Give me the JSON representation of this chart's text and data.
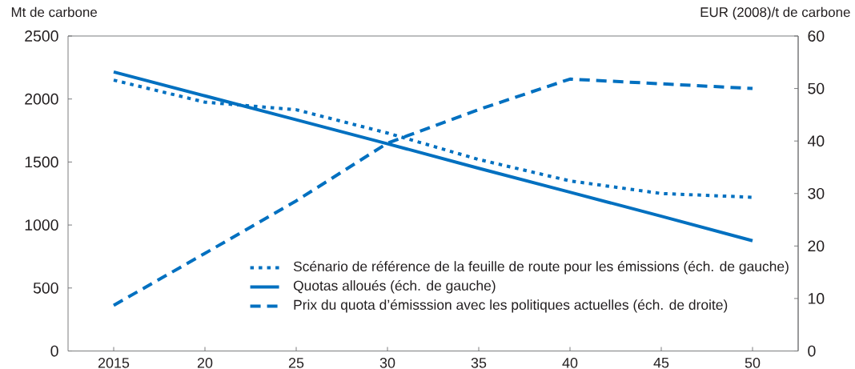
{
  "chart_data": {
    "type": "line",
    "ylabel": "Mt de carbone",
    "y2label": "EUR (2008)/t de carbone",
    "x": [
      2015,
      2020,
      2025,
      2030,
      2035,
      2040,
      2045,
      2050
    ],
    "series": [
      {
        "name": "Scénario de référence de la feuille de route pour les émissions (éch. de gauche)",
        "color": "#0070c0",
        "line_style": "dotted",
        "values": [
          2150,
          1975,
          1915,
          1730,
          1520,
          1350,
          1250,
          1220
        ]
      },
      {
        "name": "Quotas alloués (éch. de gauche)",
        "color": "#0070c0",
        "line_style": "solid",
        "values": [
          2215,
          2025,
          1835,
          1645,
          1450,
          1260,
          1070,
          875
        ]
      },
      {
        "name": "Prix du quota d’émisssion avec les politiques actuelles (éch. de droite)",
        "color": "#0070c0",
        "line_style": "dashed",
        "axis": "y2",
        "values": [
          8.7,
          18.6,
          28.6,
          39.6,
          46,
          51.8,
          50.9,
          50
        ]
      }
    ],
    "xlim": [
      2012.5,
      2052.5
    ],
    "xticks": [
      {
        "value": 2015,
        "label": "2015"
      },
      {
        "value": 2020,
        "label": "20"
      },
      {
        "value": 2025,
        "label": "25"
      },
      {
        "value": 2030,
        "label": "30"
      },
      {
        "value": 2035,
        "label": "35"
      },
      {
        "value": 2040,
        "label": "40"
      },
      {
        "value": 2045,
        "label": "45"
      },
      {
        "value": 2050,
        "label": "50"
      }
    ],
    "ylim": [
      0,
      2500
    ],
    "yticks": [
      0,
      500,
      1000,
      1500,
      2000,
      2500
    ],
    "y2lim": [
      0,
      60
    ],
    "y2ticks": [
      0,
      10,
      20,
      30,
      40,
      50,
      60
    ],
    "legend": "bottom right"
  }
}
